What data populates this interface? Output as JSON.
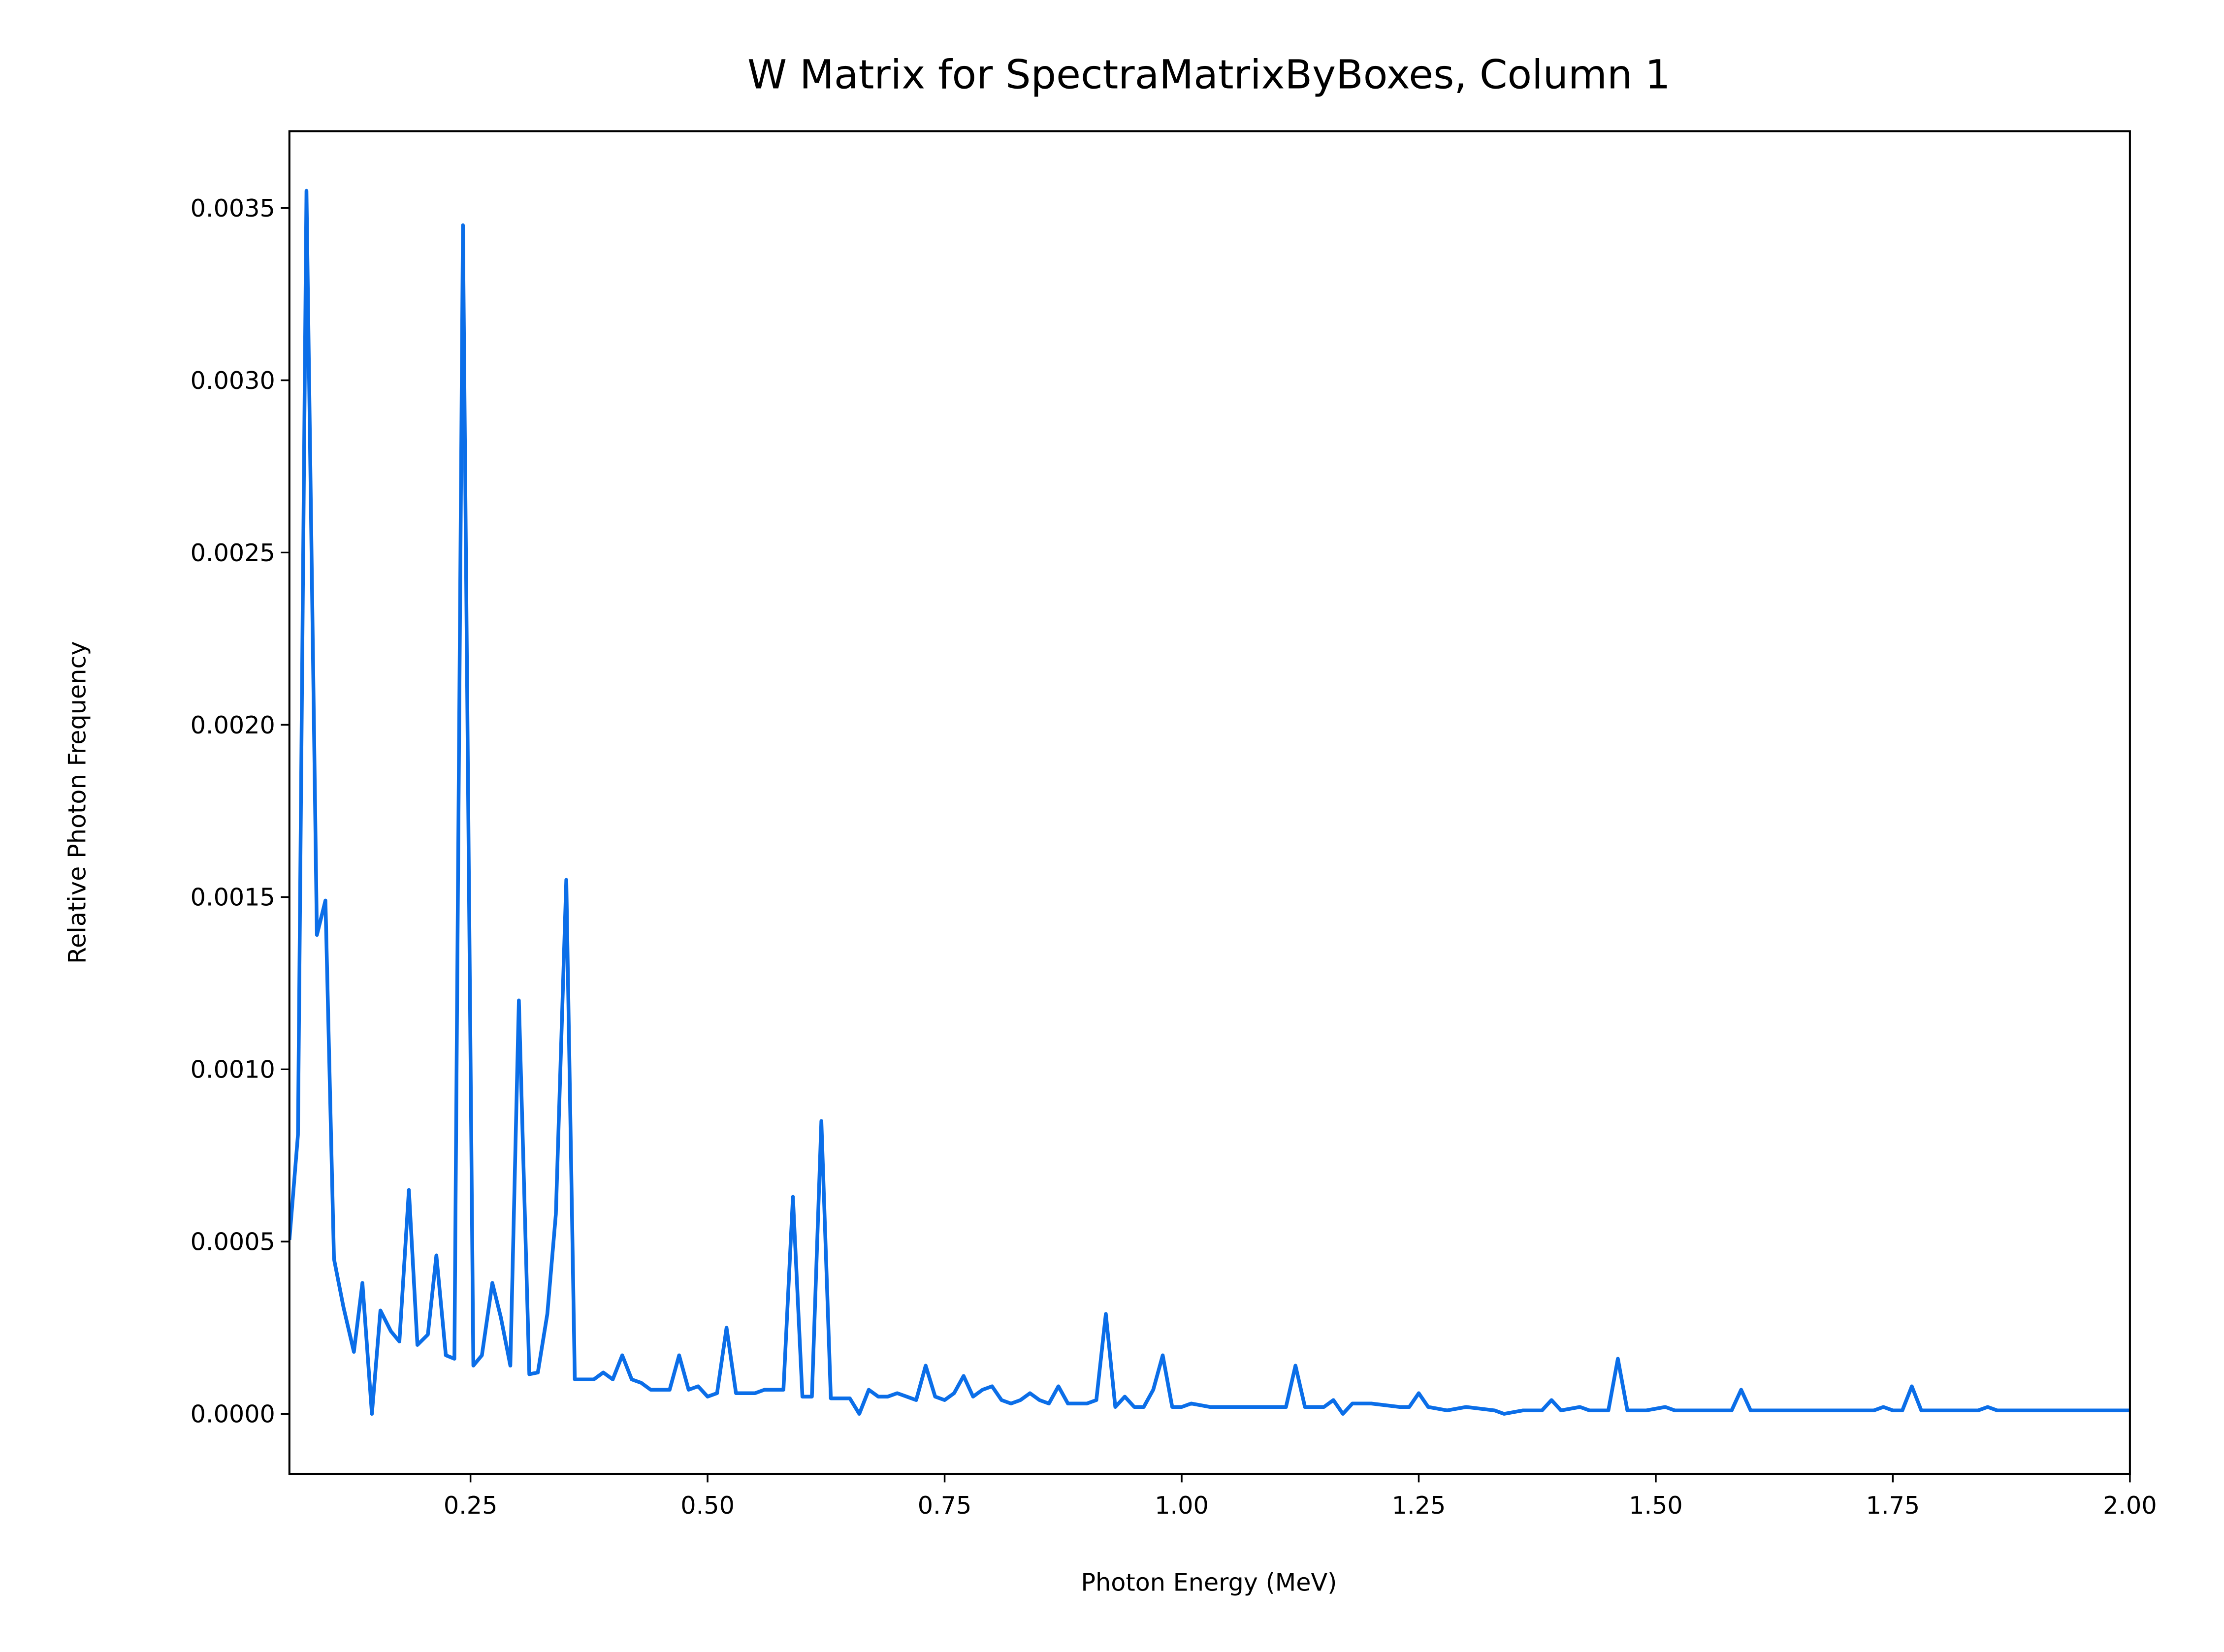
{
  "chart_data": {
    "type": "line",
    "title": "W Matrix for SpectraMatrixByBoxes, Column 1",
    "x_label": "Photon Energy (MeV)",
    "y_label": "Relative Photon Frequency",
    "xlim": [
      0.059,
      2.0
    ],
    "ylim": [
      -0.000174,
      0.003723
    ],
    "xticks": [
      0.25,
      {
        "value": 0.5,
        "label": "0.50"
      },
      0.75,
      {
        "value": 1.0,
        "label": "1.00"
      },
      1.25,
      {
        "value": 1.5,
        "label": "1.50"
      },
      1.75,
      {
        "value": 2.0,
        "label": "2.00"
      }
    ],
    "yticks": [
      {
        "value": 0,
        "label": "0.0000"
      },
      {
        "value": 0.0005,
        "label": "0.0005"
      },
      {
        "value": 0.001,
        "label": "0.0010"
      },
      {
        "value": 0.0015,
        "label": "0.0015"
      },
      {
        "value": 0.002,
        "label": "0.0020"
      },
      {
        "value": 0.0025,
        "label": "0.0025"
      },
      {
        "value": 0.003,
        "label": "0.0030"
      },
      {
        "value": 0.0035,
        "label": "0.0035"
      }
    ],
    "grid": false,
    "x": [
      0.059,
      0.068,
      0.077,
      0.088,
      0.097,
      0.106,
      0.116,
      0.127,
      0.136,
      0.146,
      0.155,
      0.166,
      0.175,
      0.185,
      0.194,
      0.205,
      0.214,
      0.224,
      0.233,
      0.242,
      0.253,
      0.262,
      0.273,
      0.282,
      0.292,
      0.301,
      0.312,
      0.321,
      0.331,
      0.34,
      0.351,
      0.36,
      0.37,
      0.38,
      0.39,
      0.4,
      0.41,
      0.42,
      0.43,
      0.44,
      0.45,
      0.46,
      0.47,
      0.48,
      0.49,
      0.5,
      0.51,
      0.52,
      0.53,
      0.54,
      0.55,
      0.56,
      0.57,
      0.58,
      0.59,
      0.6,
      0.61,
      0.62,
      0.63,
      0.64,
      0.65,
      0.66,
      0.67,
      0.68,
      0.69,
      0.7,
      0.71,
      0.72,
      0.73,
      0.74,
      0.75,
      0.76,
      0.77,
      0.78,
      0.79,
      0.8,
      0.81,
      0.82,
      0.83,
      0.84,
      0.85,
      0.86,
      0.87,
      0.88,
      0.89,
      0.9,
      0.91,
      0.92,
      0.93,
      0.94,
      0.95,
      0.96,
      0.97,
      0.98,
      0.99,
      1.0,
      1.01,
      1.03,
      1.06,
      1.09,
      1.11,
      1.12,
      1.13,
      1.15,
      1.16,
      1.17,
      1.18,
      1.2,
      1.23,
      1.24,
      1.25,
      1.26,
      1.28,
      1.3,
      1.33,
      1.34,
      1.36,
      1.38,
      1.39,
      1.4,
      1.42,
      1.43,
      1.45,
      1.46,
      1.47,
      1.49,
      1.51,
      1.52,
      1.55,
      1.57,
      1.58,
      1.59,
      1.6,
      1.62,
      1.64,
      1.66,
      1.7,
      1.73,
      1.74,
      1.75,
      1.76,
      1.77,
      1.78,
      1.84,
      1.85,
      1.86,
      1.87,
      1.92,
      2.0
    ],
    "series": [
      {
        "color": "#0b6ee8",
        "values": [
          0.000505,
          0.00081,
          0.00355,
          0.00139,
          0.00149,
          0.00045,
          0.00031,
          0.00018,
          0.00038,
          0.0,
          0.0003,
          0.00024,
          0.00021,
          0.00065,
          0.0002,
          0.00023,
          0.00046,
          0.00017,
          0.00016,
          0.00345,
          0.00014,
          0.00017,
          0.00038,
          0.00028,
          0.00014,
          0.0012,
          0.000115,
          0.00012,
          0.00029,
          0.00058,
          0.00155,
          0.0001,
          0.0001,
          0.0001,
          0.00012,
          0.0001,
          0.00017,
          0.0001,
          9e-05,
          7e-05,
          7e-05,
          7e-05,
          0.00017,
          7e-05,
          8e-05,
          5e-05,
          6e-05,
          0.00025,
          6e-05,
          6e-05,
          6e-05,
          7e-05,
          7e-05,
          7e-05,
          0.00063,
          5e-05,
          5e-05,
          0.00085,
          4.5e-05,
          4.5e-05,
          4.5e-05,
          0.0,
          7e-05,
          5e-05,
          5e-05,
          6e-05,
          5e-05,
          4e-05,
          0.00014,
          5e-05,
          4e-05,
          6e-05,
          0.00011,
          5e-05,
          7e-05,
          8e-05,
          4e-05,
          3e-05,
          4e-05,
          6e-05,
          4e-05,
          3e-05,
          8e-05,
          3e-05,
          3e-05,
          3e-05,
          4e-05,
          0.00029,
          2e-05,
          5e-05,
          2e-05,
          2e-05,
          7e-05,
          0.00017,
          2e-05,
          2e-05,
          3e-05,
          2e-05,
          2e-05,
          2e-05,
          2e-05,
          0.00014,
          2e-05,
          2e-05,
          4e-05,
          0.0,
          3e-05,
          3e-05,
          2e-05,
          2e-05,
          6e-05,
          2e-05,
          1e-05,
          2e-05,
          1e-05,
          0.0,
          1e-05,
          1e-05,
          4e-05,
          1e-05,
          2e-05,
          1e-05,
          1e-05,
          0.00016,
          1e-05,
          1e-05,
          2e-05,
          1e-05,
          1e-05,
          1e-05,
          1e-05,
          7e-05,
          1e-05,
          1e-05,
          1e-05,
          1e-05,
          1e-05,
          1e-05,
          2e-05,
          1e-05,
          1e-05,
          8e-05,
          1e-05,
          1e-05,
          2e-05,
          1e-05,
          1e-05,
          1e-05,
          1e-05
        ]
      }
    ]
  }
}
